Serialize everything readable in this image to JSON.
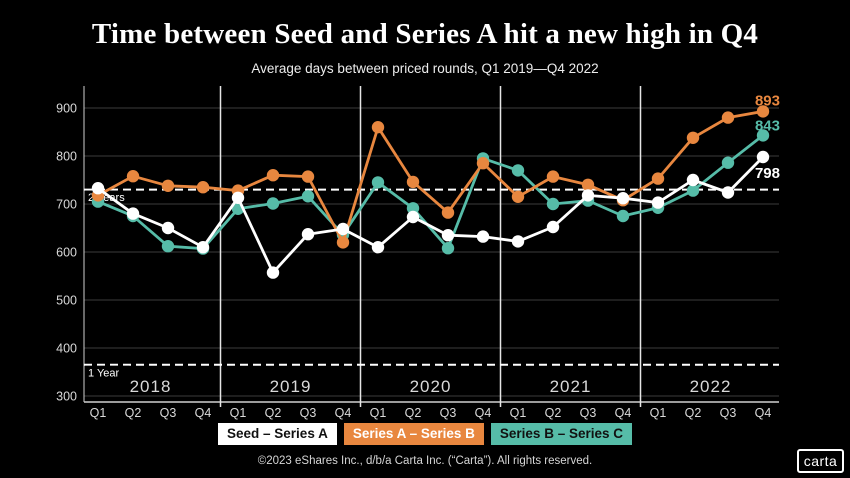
{
  "title": "Time between Seed and Series A hit a new high in Q4",
  "subtitle": "Average days between priced rounds, Q1 2019—Q4 2022",
  "footer": "©2023 eShares Inc., d/b/a Carta Inc. (“Carta”). All rights reserved.",
  "logo_text": "carta",
  "colors": {
    "background": "#000000",
    "seed_series_a": "#ffffff",
    "series_a_b": "#E8873F",
    "series_b_c": "#56BCA8",
    "gridline": "#3d3d3d",
    "axis": "#cfcfcf",
    "tick_text": "#d9d9d9"
  },
  "legend": [
    {
      "label": "Seed – Series A",
      "bg": "#ffffff",
      "fg": "#111111"
    },
    {
      "label": "Series A – Series B",
      "bg": "#E8873F",
      "fg": "#ffffff"
    },
    {
      "label": "Series B – Series C",
      "bg": "#56BCA8",
      "fg": "#111111"
    }
  ],
  "chart_data": {
    "type": "line",
    "title": "Time between Seed and Series A hit a new high in Q4",
    "subtitle": "Average days between priced rounds, Q1 2019—Q4 2022",
    "ylabel": "Average days between priced rounds",
    "ylim": [
      300,
      900
    ],
    "yticks": [
      300,
      400,
      500,
      600,
      700,
      800,
      900
    ],
    "grid": true,
    "legend_position": "bottom",
    "years": [
      "2018",
      "2019",
      "2020",
      "2021",
      "2022"
    ],
    "quarter_labels": [
      "Q1",
      "Q2",
      "Q3",
      "Q4"
    ],
    "categories": [
      "Q1 2018",
      "Q2 2018",
      "Q3 2018",
      "Q4 2018",
      "Q1 2019",
      "Q2 2019",
      "Q3 2019",
      "Q4 2019",
      "Q1 2020",
      "Q2 2020",
      "Q3 2020",
      "Q4 2020",
      "Q1 2021",
      "Q2 2021",
      "Q3 2021",
      "Q4 2021",
      "Q1 2022",
      "Q2 2022",
      "Q3 2022",
      "Q4 2022"
    ],
    "thresholds": [
      {
        "value": 730,
        "label": "2 Years"
      },
      {
        "value": 365,
        "label": "1 Year"
      }
    ],
    "series": [
      {
        "name": "Series B – Series C",
        "color": "#56BCA8",
        "end_label": "843",
        "end_label_dy": -5,
        "values": [
          705,
          675,
          612,
          607,
          690,
          701,
          716,
          636,
          745,
          691,
          608,
          795,
          770,
          700,
          707,
          675,
          692,
          728,
          786,
          843
        ]
      },
      {
        "name": "Series A – Series B",
        "color": "#E8873F",
        "end_label": "893",
        "end_label_dy": -6,
        "values": [
          718,
          758,
          738,
          735,
          728,
          760,
          757,
          620,
          860,
          746,
          682,
          785,
          715,
          757,
          740,
          708,
          753,
          838,
          880,
          893
        ]
      },
      {
        "name": "Seed – Series A",
        "color": "#ffffff",
        "end_label": "798",
        "end_label_dy": 21,
        "values": [
          733,
          680,
          650,
          610,
          713,
          557,
          637,
          648,
          610,
          673,
          635,
          632,
          622,
          652,
          718,
          712,
          703,
          750,
          724,
          798
        ]
      }
    ]
  }
}
